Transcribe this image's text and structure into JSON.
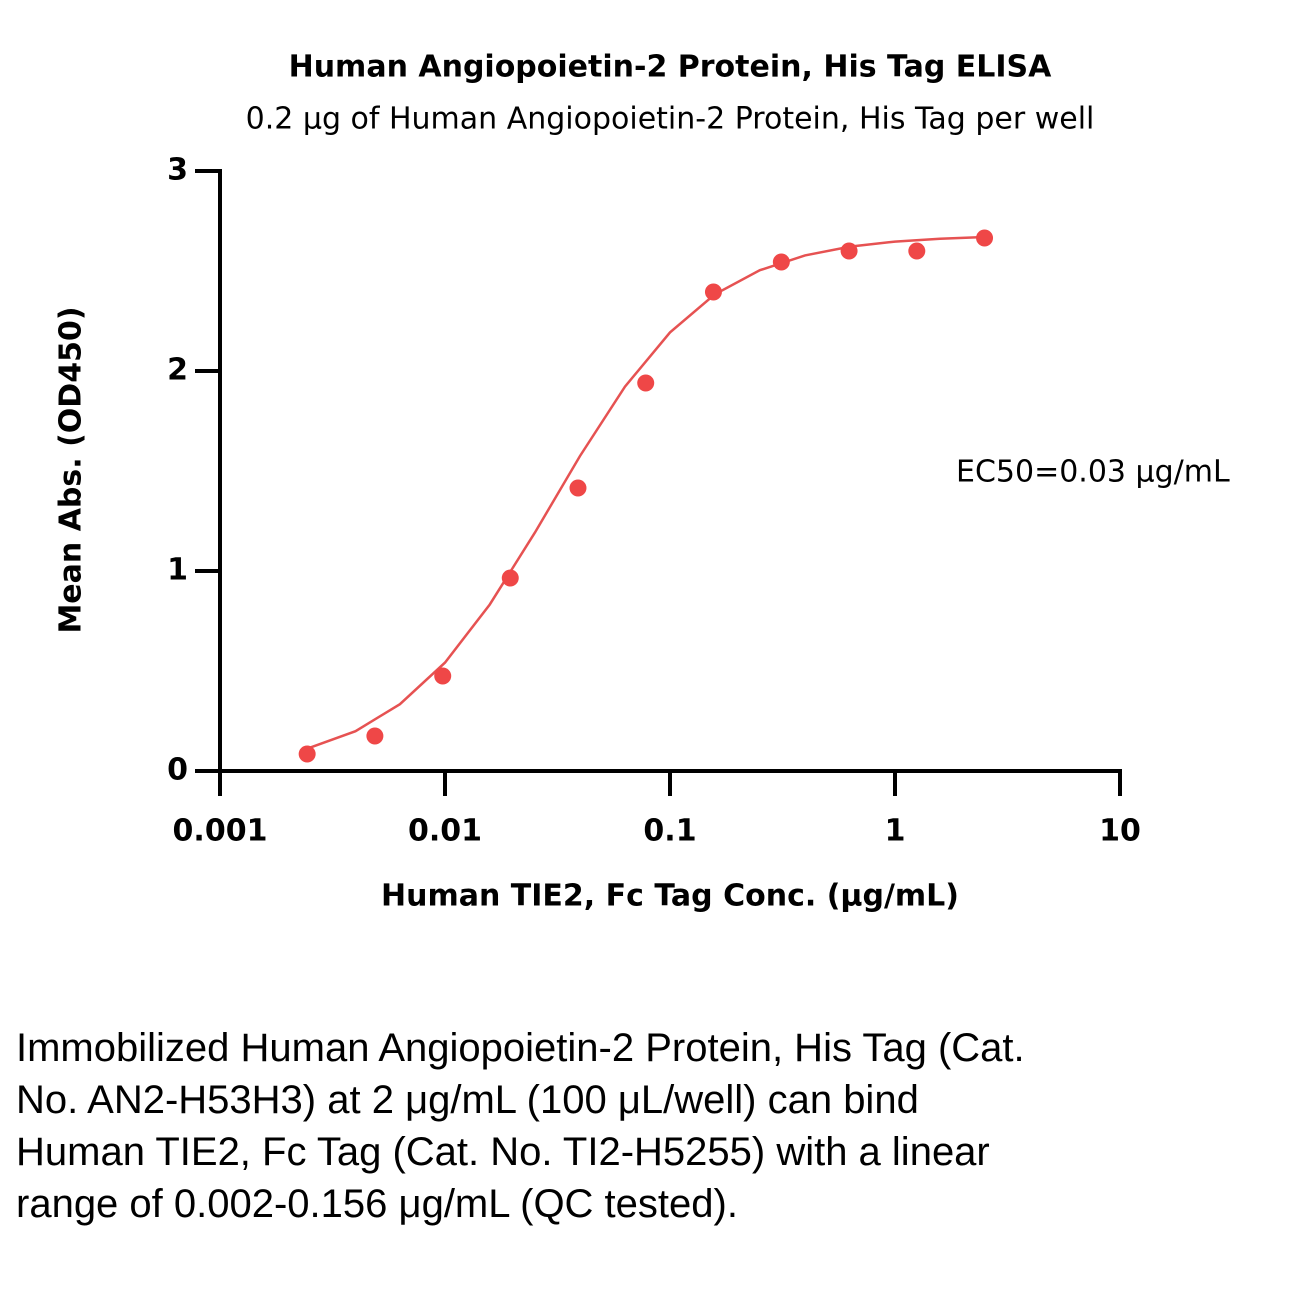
{
  "chart_data": {
    "type": "scatter",
    "title": "Human Angiopoietin-2 Protein, His Tag ELISA",
    "subtitle": "0.2 μg of Human Angiopoietin-2 Protein, His Tag per well",
    "xlabel": "Human TIE2, Fc Tag Conc. (μg/mL)",
    "ylabel": "Mean Abs. (OD450)",
    "annotation": "EC50=0.03 μg/mL",
    "xscale": "log",
    "xlim": [
      0.001,
      10
    ],
    "xticks": [
      0.001,
      0.01,
      0.1,
      1,
      10
    ],
    "ylim": [
      0,
      3
    ],
    "yticks": [
      0,
      1,
      2,
      3
    ],
    "points": {
      "color": "#ef4747",
      "x": [
        0.00244,
        0.00488,
        0.00977,
        0.0195,
        0.039,
        0.078,
        0.156,
        0.3125,
        0.625,
        1.25,
        2.5
      ],
      "values": [
        0.085,
        0.175,
        0.475,
        0.965,
        1.415,
        1.94,
        2.395,
        2.545,
        2.6,
        2.6,
        2.665
      ]
    },
    "fit": {
      "color": "#e65252",
      "x": [
        0.0025,
        0.004,
        0.0063,
        0.01,
        0.0158,
        0.0251,
        0.0398,
        0.0631,
        0.1,
        0.158,
        0.251,
        0.398,
        0.631,
        1,
        1.585,
        2.512
      ],
      "values": [
        0.116,
        0.199,
        0.334,
        0.542,
        0.832,
        1.192,
        1.575,
        1.922,
        2.193,
        2.383,
        2.504,
        2.578,
        2.622,
        2.647,
        2.661,
        2.67
      ]
    }
  },
  "caption": "Immobilized Human Angiopoietin-2 Protein, His Tag (Cat. No. AN2-H53H3) at 2 μg/mL (100 μL/well) can bind Human TIE2, Fc Tag (Cat. No. TI2-H5255) with a linear range of 0.002-0.156 μg/mL (QC tested)."
}
